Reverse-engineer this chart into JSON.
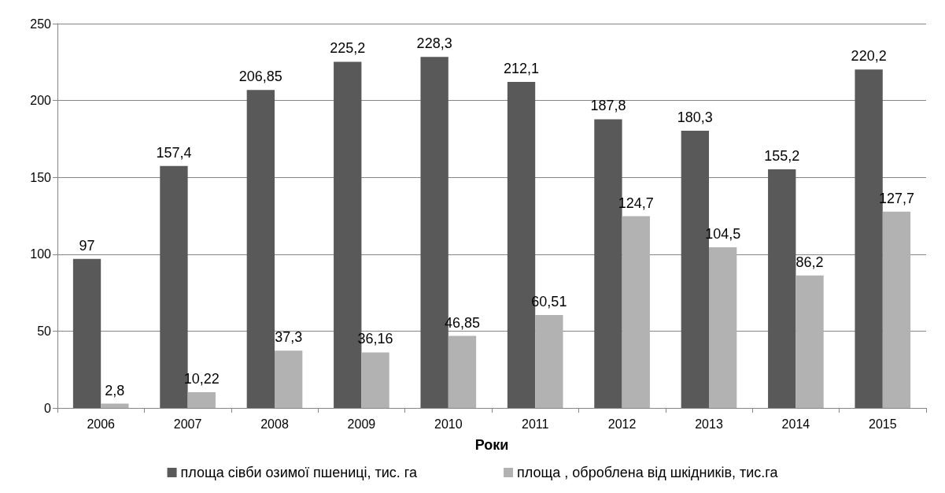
{
  "chart_data": {
    "type": "bar",
    "xlabel": "Роки",
    "categories": [
      "2006",
      "2007",
      "2008",
      "2009",
      "2010",
      "2011",
      "2012",
      "2013",
      "2014",
      "2015"
    ],
    "series": [
      {
        "name": "площа сівби озимої пшениці, тис. га",
        "color": "#595959",
        "values": [
          97,
          157.4,
          206.85,
          225.2,
          228.3,
          212.1,
          187.8,
          180.3,
          155.2,
          220.2
        ],
        "value_labels": [
          "97",
          "157,4",
          "206,85",
          "225,2",
          "228,3",
          "212,1",
          "187,8",
          "180,3",
          "155,2",
          "220,2"
        ]
      },
      {
        "name": "площа , оброблена від шкідників, тис.га",
        "color": "#b2b2b2",
        "values": [
          2.8,
          10.22,
          37.3,
          36.16,
          46.85,
          60.51,
          124.7,
          104.5,
          86.2,
          127.7
        ],
        "value_labels": [
          "2,8",
          "10,22",
          "37,3",
          "36,16",
          "46,85",
          "60,51",
          "124,7",
          "104,5",
          "86,2",
          "127,7"
        ]
      }
    ],
    "ylim": [
      0,
      250
    ],
    "yticks": [
      0,
      50,
      100,
      150,
      200,
      250
    ],
    "grid": "y",
    "legend": "bottom"
  }
}
